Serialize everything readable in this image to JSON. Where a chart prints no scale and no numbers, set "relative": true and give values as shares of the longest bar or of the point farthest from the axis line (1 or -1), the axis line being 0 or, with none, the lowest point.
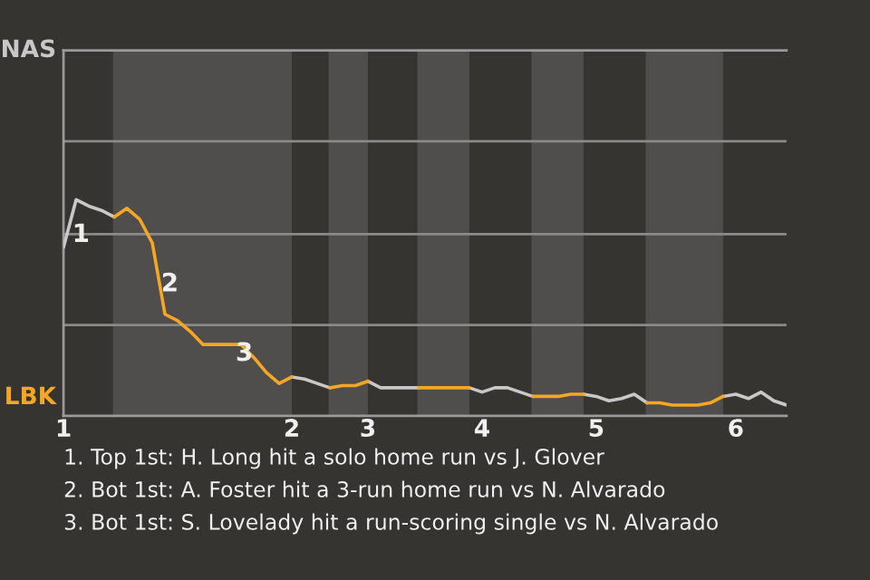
{
  "chart_data": {
    "type": "line",
    "relative": true,
    "categories": [
      "1",
      null,
      null,
      null,
      null,
      null,
      null,
      null,
      null,
      null,
      null,
      null,
      null,
      null,
      null,
      null,
      null,
      null,
      "2",
      null,
      null,
      null,
      null,
      null,
      "3",
      null,
      null,
      null,
      null,
      null,
      null,
      null,
      null,
      "4",
      null,
      null,
      null,
      null,
      null,
      null,
      null,
      null,
      "5",
      null,
      null,
      null,
      null,
      null,
      null,
      null,
      null,
      null,
      null,
      "6",
      null,
      null,
      null,
      null
    ],
    "series": [
      {
        "color": "#c8c8c8",
        "values": [
          0.78,
          1,
          0.97,
          0.95,
          0.92,
          null,
          null,
          null,
          null,
          null,
          null,
          null,
          null,
          null,
          null,
          null,
          null,
          null,
          0.18,
          0.17,
          0.15,
          0.13,
          null,
          null,
          0.16,
          0.13,
          0.13,
          0.13,
          0.13,
          null,
          null,
          null,
          0.13,
          0.11,
          0.13,
          0.13,
          0.11,
          0.09,
          null,
          null,
          null,
          0.1,
          0.09,
          0.07,
          0.08,
          0.1,
          0.06,
          null,
          null,
          null,
          null,
          null,
          0.09,
          0.1,
          0.08,
          0.11,
          0.07,
          0.05
        ]
      },
      {
        "color": "#f5a623",
        "values": [
          null,
          null,
          null,
          null,
          0.92,
          0.96,
          0.91,
          0.8,
          0.47,
          0.44,
          0.39,
          0.33,
          0.33,
          0.33,
          0.33,
          0.27,
          0.2,
          0.15,
          0.18,
          null,
          null,
          0.13,
          0.14,
          0.14,
          0.16,
          null,
          null,
          null,
          0.13,
          0.13,
          0.13,
          0.13,
          0.13,
          null,
          null,
          null,
          null,
          0.09,
          0.09,
          0.09,
          0.1,
          0.1,
          null,
          null,
          null,
          null,
          0.06,
          0.06,
          0.05,
          0.05,
          0.05,
          0.06,
          0.09,
          null,
          null,
          null,
          null,
          null
        ]
      }
    ],
    "ref_lines": [
      {
        "axis": "y",
        "value": 0.42,
        "color": "#8a8a8a"
      },
      {
        "axis": "y",
        "value": 0.84,
        "color": "#8a8a8a"
      },
      {
        "axis": "y",
        "value": 1.27,
        "color": "#8a8a8a"
      }
    ],
    "annotations": [
      "NAS",
      "LBK",
      "1",
      "2",
      "3",
      "1. Top 1st: H. Long hit a solo home run vs J. Glover",
      "2. Bot 1st: A. Foster hit a 3-run home run vs N. Alvarado",
      "3. Bot 1st: S. Lovelady hit a run-scoring single vs N. Alvarado"
    ]
  }
}
